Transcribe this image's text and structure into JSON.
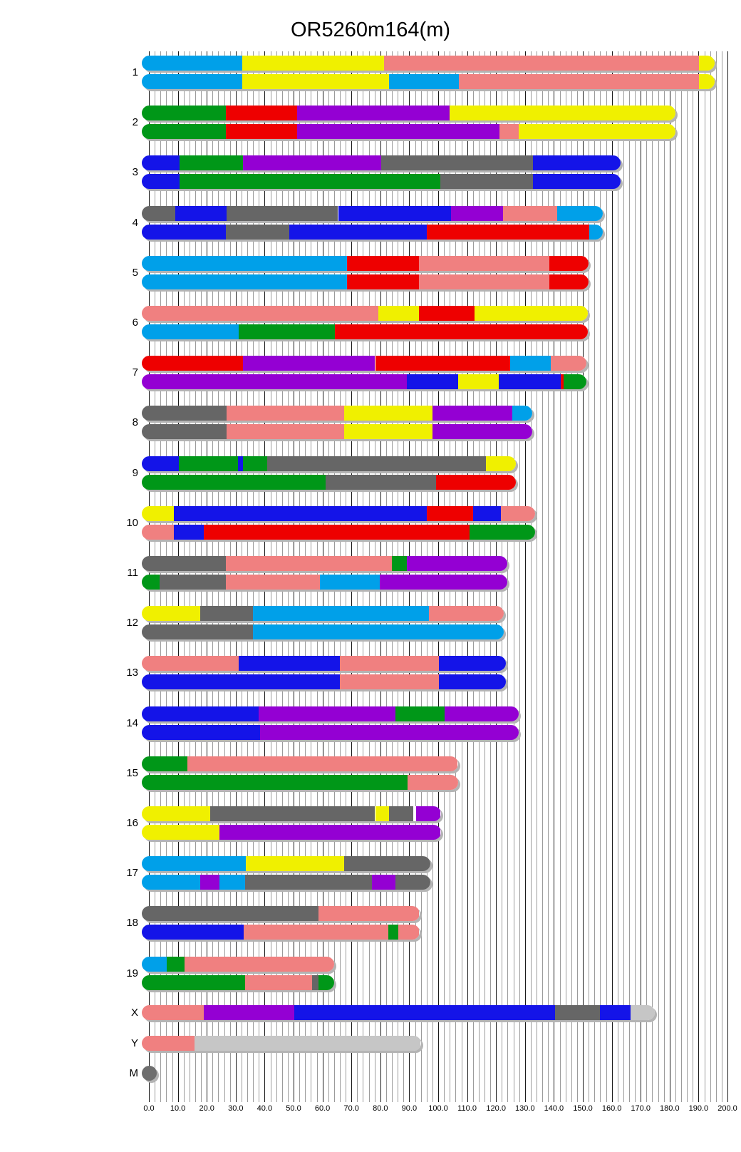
{
  "title": "OR5260m164(m)",
  "colors": {
    "skyblue": "#00A0E9",
    "blue": "#1414E8",
    "green": "#009718",
    "red": "#EE0000",
    "yellow": "#F0F000",
    "pink": "#F08080",
    "purple": "#9400D3",
    "gray": "#666666",
    "silver": "#C6C6C6",
    "dimgray": "#6E6E6E",
    "white": "#FFFFFF"
  },
  "x_axis": {
    "min": 0,
    "max": 200,
    "major_step": 10,
    "minor_step": 2,
    "tick_labels": [
      "0.0",
      "10.0",
      "20.0",
      "30.0",
      "40.0",
      "50.0",
      "60.0",
      "70.0",
      "80.0",
      "90.0",
      "100.0",
      "110.0",
      "120.0",
      "130.0",
      "140.0",
      "150.0",
      "160.0",
      "170.0",
      "180.0",
      "190.0",
      "200.0"
    ]
  },
  "chart_data": {
    "type": "bar",
    "subtype": "chromosome-painting",
    "title": "OR5260m164(m)",
    "x_range": [
      0,
      200
    ],
    "grid": "vertical, minor every 2, major every 10",
    "chromosomes": [
      {
        "name": "1",
        "bars": [
          [
            [
              "skyblue",
              0,
              32.3
            ],
            [
              "yellow",
              32.3,
              81.2
            ],
            [
              "pink",
              81.2,
              190.1
            ],
            [
              "yellow",
              190.1,
              193
            ]
          ],
          [
            [
              "skyblue",
              0,
              32.3
            ],
            [
              "yellow",
              32.3,
              83
            ],
            [
              "skyblue",
              83,
              107.2
            ],
            [
              "pink",
              107.2,
              190.1
            ],
            [
              "yellow",
              190.1,
              193
            ]
          ]
        ]
      },
      {
        "name": "2",
        "bars": [
          [
            [
              "green",
              0,
              26.5
            ],
            [
              "red",
              26.5,
              51.3
            ],
            [
              "purple",
              51.3,
              104
            ],
            [
              "yellow",
              104,
              179.5
            ]
          ],
          [
            [
              "green",
              0,
              26.5
            ],
            [
              "red",
              26.5,
              51.3
            ],
            [
              "purple",
              51.3,
              121.2
            ],
            [
              "pink",
              121.2,
              127.9
            ],
            [
              "yellow",
              127.9,
              179.5
            ]
          ]
        ]
      },
      {
        "name": "3",
        "bars": [
          [
            [
              "blue",
              0,
              10.6
            ],
            [
              "green",
              10.6,
              32.6
            ],
            [
              "purple",
              32.6,
              80.4
            ],
            [
              "gray",
              80.4,
              132.7
            ],
            [
              "blue",
              132.7,
              160.5
            ]
          ],
          [
            [
              "blue",
              0,
              10.6
            ],
            [
              "green",
              10.6,
              100.8
            ],
            [
              "gray",
              100.8,
              132.7
            ],
            [
              "blue",
              132.7,
              160.5
            ]
          ]
        ]
      },
      {
        "name": "4",
        "bars": [
          [
            [
              "gray",
              0,
              9
            ],
            [
              "blue",
              9,
              26.8
            ],
            [
              "gray",
              26.8,
              65.4
            ],
            [
              "blue",
              65.4,
              104.4
            ],
            [
              "purple",
              104.4,
              122.5
            ],
            [
              "pink",
              122.5,
              141.2
            ],
            [
              "skyblue",
              141.2,
              154.5
            ]
          ],
          [
            [
              "blue",
              0,
              26.6
            ],
            [
              "gray",
              26.6,
              48.6
            ],
            [
              "blue",
              48.6,
              96
            ],
            [
              "red",
              96,
              152.2
            ],
            [
              "skyblue",
              152.2,
              154.5
            ]
          ]
        ]
      },
      {
        "name": "5",
        "bars": [
          [
            [
              "skyblue",
              0,
              68.4
            ],
            [
              "red",
              68.4,
              93.3
            ],
            [
              "pink",
              93.3,
              138.5
            ],
            [
              "red",
              138.5,
              149.5
            ]
          ],
          [
            [
              "skyblue",
              0,
              68.4
            ],
            [
              "red",
              68.4,
              93.3
            ],
            [
              "pink",
              93.3,
              138.5
            ],
            [
              "red",
              138.5,
              149.5
            ]
          ]
        ]
      },
      {
        "name": "6",
        "bars": [
          [
            [
              "pink",
              0,
              79.3
            ],
            [
              "yellow",
              79.3,
              93.3
            ],
            [
              "red",
              93.3,
              112.5
            ],
            [
              "yellow",
              112.5,
              149.2
            ]
          ],
          [
            [
              "skyblue",
              0,
              31
            ],
            [
              "green",
              31,
              64.2
            ],
            [
              "red",
              64.2,
              149.2
            ]
          ]
        ]
      },
      {
        "name": "7",
        "bars": [
          [
            [
              "red",
              0,
              32.6
            ],
            [
              "purple",
              32.6,
              78.2
            ],
            [
              "red",
              78.2,
              124.8
            ],
            [
              "skyblue",
              124.8,
              139
            ],
            [
              "pink",
              139,
              148.7
            ]
          ],
          [
            [
              "purple",
              0,
              89.1
            ],
            [
              "blue",
              89.1,
              107
            ],
            [
              "yellow",
              107,
              121
            ],
            [
              "blue",
              121,
              142.4
            ],
            [
              "red",
              142.4,
              143.4
            ],
            [
              "green",
              143.4,
              148.7
            ]
          ]
        ]
      },
      {
        "name": "8",
        "bars": [
          [
            [
              "gray",
              0,
              26.8
            ],
            [
              "pink",
              26.8,
              67.4
            ],
            [
              "yellow",
              67.4,
              98
            ],
            [
              "purple",
              98,
              125.5
            ],
            [
              "skyblue",
              125.5,
              130
            ]
          ],
          [
            [
              "gray",
              0,
              26.8
            ],
            [
              "pink",
              26.8,
              67.4
            ],
            [
              "yellow",
              67.4,
              98
            ],
            [
              "purple",
              98,
              130
            ]
          ]
        ]
      },
      {
        "name": "9",
        "bars": [
          [
            [
              "blue",
              0,
              10.4
            ],
            [
              "green",
              10.4,
              30.8
            ],
            [
              "blue",
              30.8,
              32.6
            ],
            [
              "green",
              32.6,
              40.9
            ],
            [
              "gray",
              40.9,
              116.5
            ],
            [
              "yellow",
              116.5,
              124.3
            ]
          ],
          [
            [
              "green",
              0,
              61
            ],
            [
              "gray",
              61,
              99.3
            ],
            [
              "red",
              99.3,
              124.3
            ]
          ]
        ]
      },
      {
        "name": "10",
        "bars": [
          [
            [
              "yellow",
              0,
              8.7
            ],
            [
              "blue",
              8.7,
              96.1
            ],
            [
              "red",
              96.1,
              112.1
            ],
            [
              "blue",
              112.1,
              121.6
            ],
            [
              "pink",
              121.6,
              131
            ]
          ],
          [
            [
              "pink",
              0,
              8.7
            ],
            [
              "blue",
              8.7,
              18.9
            ],
            [
              "red",
              18.9,
              110.8
            ],
            [
              "green",
              110.8,
              131
            ]
          ]
        ]
      },
      {
        "name": "11",
        "bars": [
          [
            [
              "gray",
              0,
              26.6
            ],
            [
              "pink",
              26.6,
              84
            ],
            [
              "green",
              84,
              89.1
            ],
            [
              "purple",
              89.1,
              121.5
            ]
          ],
          [
            [
              "green",
              0,
              3.6
            ],
            [
              "gray",
              3.6,
              26.6
            ],
            [
              "pink",
              26.6,
              59.1
            ],
            [
              "skyblue",
              59.1,
              79.8
            ],
            [
              "purple",
              79.8,
              121.5
            ]
          ]
        ]
      },
      {
        "name": "12",
        "bars": [
          [
            [
              "yellow",
              0,
              17.6
            ],
            [
              "gray",
              17.6,
              35.9
            ],
            [
              "skyblue",
              35.9,
              96.8
            ],
            [
              "pink",
              96.8,
              120.2
            ]
          ],
          [
            [
              "gray",
              0,
              35.9
            ],
            [
              "skyblue",
              35.9,
              120.2
            ]
          ]
        ]
      },
      {
        "name": "13",
        "bars": [
          [
            [
              "pink",
              0,
              31
            ],
            [
              "blue",
              31,
              66.1
            ],
            [
              "pink",
              66.1,
              100.2
            ],
            [
              "blue",
              100.2,
              121
            ]
          ],
          [
            [
              "blue",
              0,
              66.1
            ],
            [
              "pink",
              66.1,
              100.2
            ],
            [
              "blue",
              100.2,
              121
            ]
          ]
        ]
      },
      {
        "name": "14",
        "bars": [
          [
            [
              "blue",
              0,
              37.8
            ],
            [
              "purple",
              37.8,
              85.3
            ],
            [
              "green",
              85.3,
              102.3
            ],
            [
              "purple",
              102.3,
              125.3
            ]
          ],
          [
            [
              "blue",
              0,
              38.4
            ],
            [
              "purple",
              38.4,
              125.3
            ]
          ]
        ]
      },
      {
        "name": "15",
        "bars": [
          [
            [
              "green",
              0,
              13.2
            ],
            [
              "pink",
              13.2,
              104.3
            ]
          ],
          [
            [
              "green",
              0,
              89.4
            ],
            [
              "pink",
              89.4,
              104.3
            ]
          ]
        ]
      },
      {
        "name": "16",
        "bars": [
          [
            [
              "yellow",
              0,
              21.2
            ],
            [
              "gray",
              21.2,
              78.2
            ],
            [
              "yellow",
              78.2,
              83.1
            ],
            [
              "gray",
              83.1,
              91.5
            ],
            [
              "white",
              91.5,
              92.3
            ],
            [
              "purple",
              92.3,
              98.4
            ]
          ],
          [
            [
              "yellow",
              0,
              24.4
            ],
            [
              "purple",
              24.4,
              98.4
            ]
          ]
        ]
      },
      {
        "name": "17",
        "bars": [
          [
            [
              "skyblue",
              0,
              33.6
            ],
            [
              "yellow",
              33.6,
              67.4
            ],
            [
              "gray",
              67.4,
              94.8
            ]
          ],
          [
            [
              "skyblue",
              0,
              17.6
            ],
            [
              "purple",
              17.6,
              24.4
            ],
            [
              "skyblue",
              24.4,
              33.3
            ],
            [
              "gray",
              33.3,
              77
            ],
            [
              "purple",
              77,
              85.3
            ],
            [
              "gray",
              85.3,
              94.8
            ]
          ]
        ]
      },
      {
        "name": "18",
        "bars": [
          [
            [
              "gray",
              0,
              58.7
            ],
            [
              "pink",
              58.7,
              91
            ]
          ],
          [
            [
              "blue",
              0,
              32.7
            ],
            [
              "pink",
              32.7,
              82.7
            ],
            [
              "green",
              82.7,
              86.1
            ],
            [
              "pink",
              86.1,
              91
            ]
          ]
        ]
      },
      {
        "name": "19",
        "bars": [
          [
            [
              "skyblue",
              0,
              6.2
            ],
            [
              "green",
              6.2,
              12.3
            ],
            [
              "pink",
              12.3,
              61.6
            ]
          ],
          [
            [
              "green",
              0,
              33.2
            ],
            [
              "pink",
              33.2,
              56.3
            ],
            [
              "gray",
              56.3,
              58.7
            ],
            [
              "green",
              58.7,
              61.6
            ]
          ]
        ]
      },
      {
        "name": "X",
        "bars": [
          [
            [
              "pink",
              0,
              19
            ],
            [
              "purple",
              19,
              50.3
            ],
            [
              "blue",
              50.3,
              140.5
            ],
            [
              "gray",
              140.5,
              156
            ],
            [
              "blue",
              156,
              166.5
            ],
            [
              "silver",
              166.5,
              172.5
            ]
          ]
        ]
      },
      {
        "name": "Y",
        "bars": [
          [
            [
              "pink",
              0,
              15.8
            ],
            [
              "silver",
              15.8,
              91.5
            ]
          ]
        ]
      },
      {
        "name": "M",
        "bars": [],
        "dot": {
          "color": "dimgray"
        }
      }
    ]
  }
}
